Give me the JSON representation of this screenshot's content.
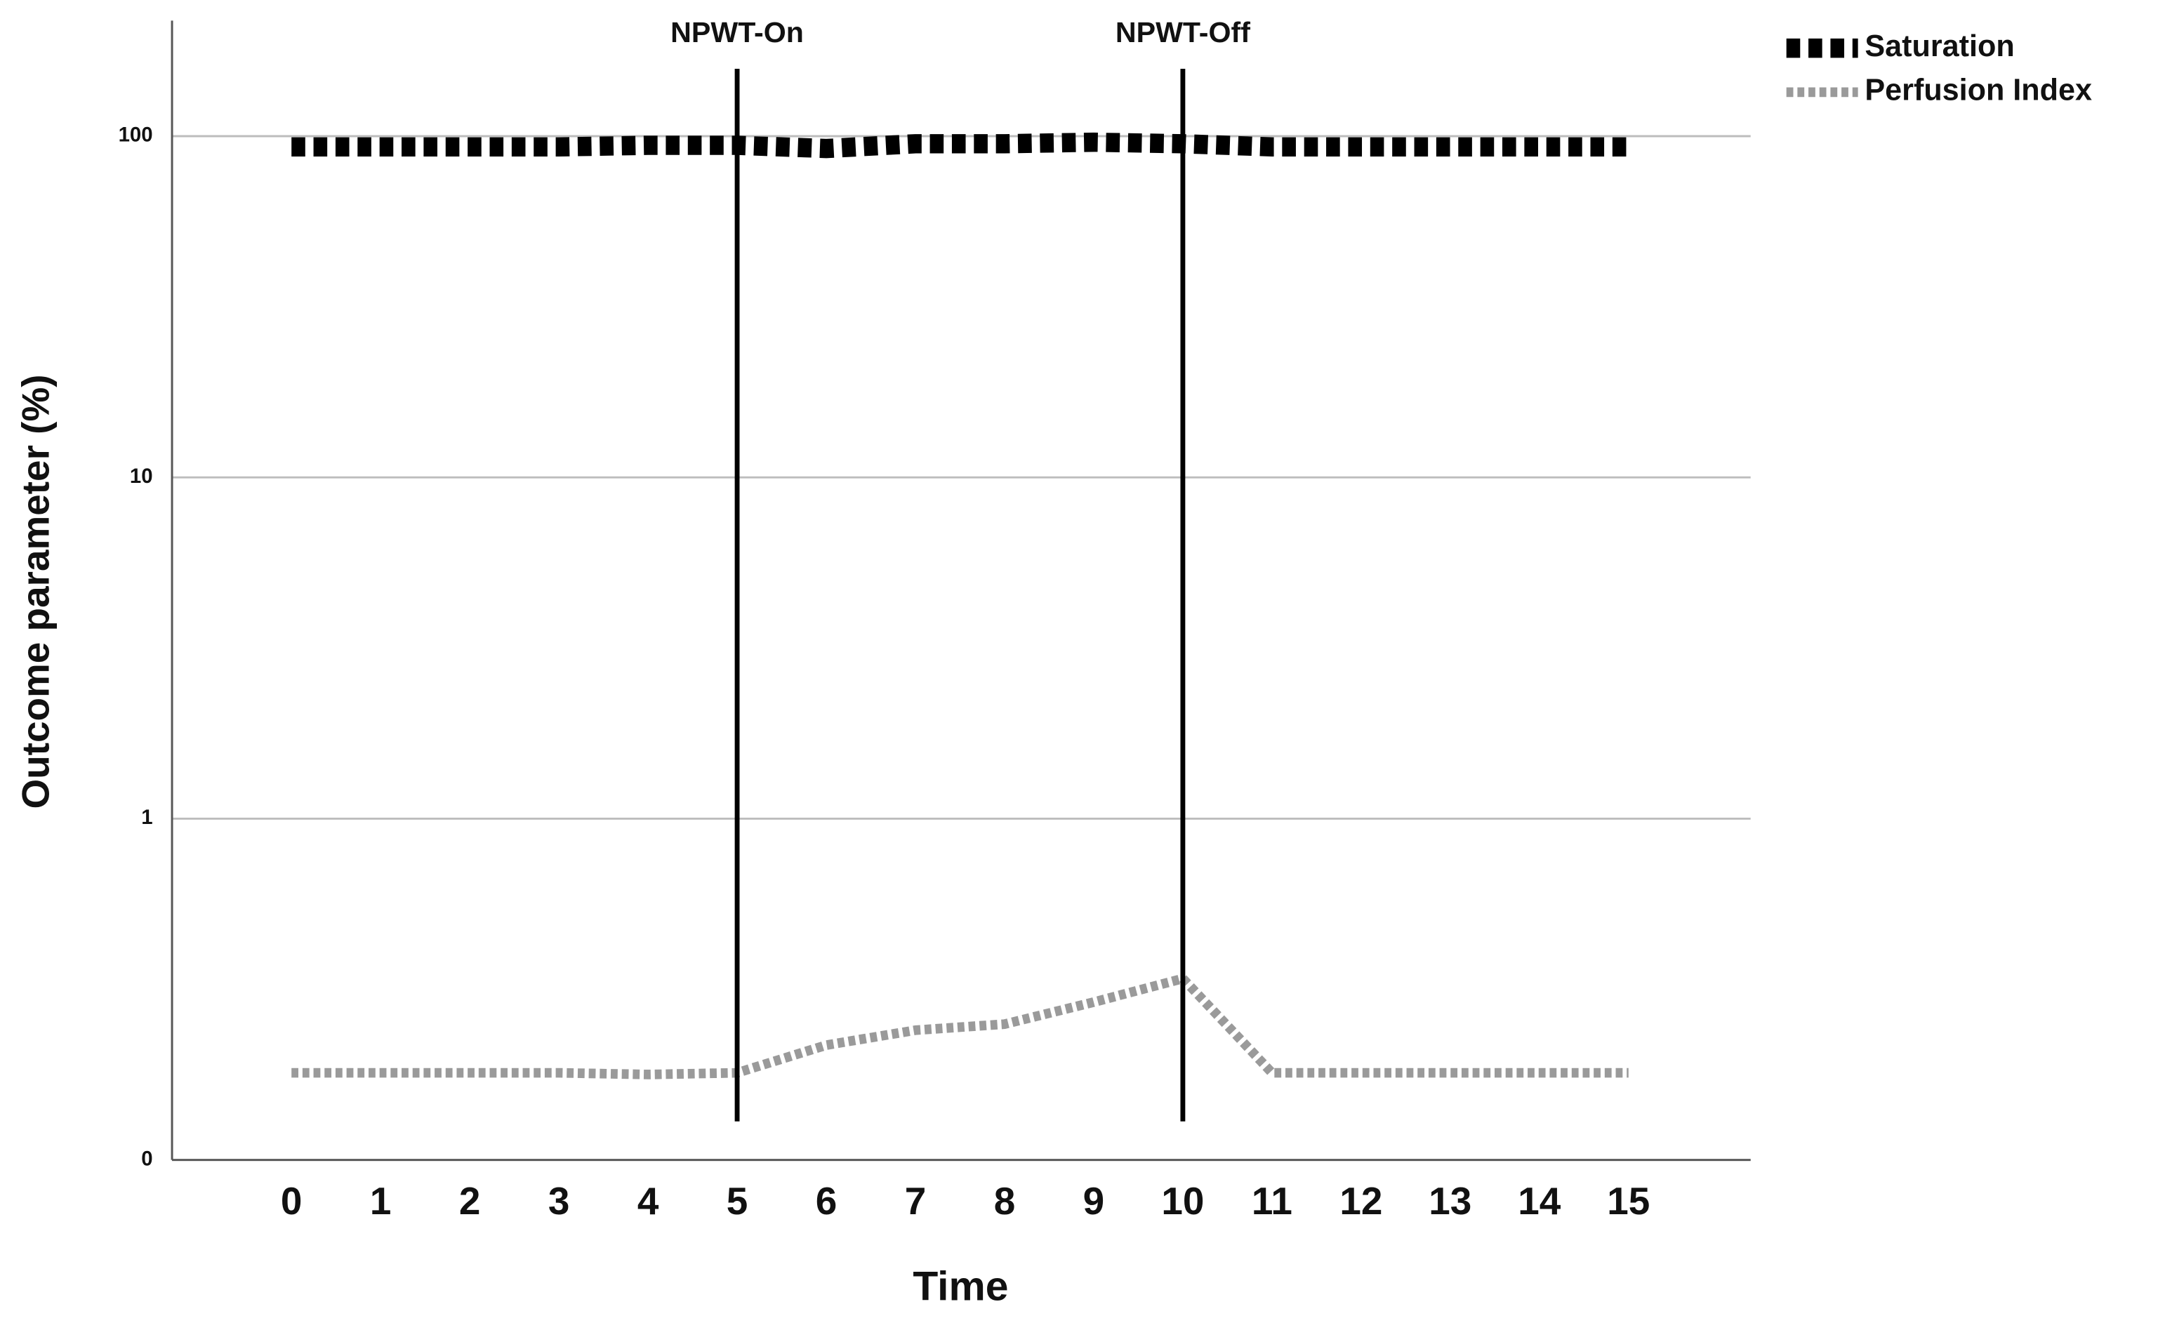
{
  "chart_data": {
    "type": "line",
    "x_label": "Time",
    "y_label": "Outcome parameter (%)",
    "x": [
      0,
      1,
      2,
      3,
      4,
      5,
      6,
      7,
      8,
      9,
      10,
      11,
      12,
      13,
      14,
      15
    ],
    "xlim": [
      -1.34,
      16.37
    ],
    "xticks": [
      0,
      1,
      2,
      3,
      4,
      5,
      6,
      7,
      8,
      9,
      10,
      11,
      12,
      13,
      14,
      15
    ],
    "y_scale": "log",
    "ylim": [
      0.1,
      218
    ],
    "yticks": [
      {
        "value": 0.1,
        "label": "0"
      },
      1,
      10,
      100
    ],
    "grid": true,
    "legend": "top-right",
    "series": [
      {
        "name": "Saturation",
        "color": "#000000",
        "values": [
          93,
          93,
          93,
          93,
          94,
          94,
          92,
          95,
          95,
          96,
          95,
          93,
          93,
          93,
          93,
          93
        ]
      },
      {
        "name": "Perfusion Index",
        "color": "#9a9a9a",
        "values": [
          0.18,
          0.18,
          0.18,
          0.18,
          0.178,
          0.18,
          0.217,
          0.24,
          0.25,
          0.29,
          0.34,
          0.18,
          0.18,
          0.18,
          0.18,
          0.18
        ]
      }
    ],
    "annotations": [
      {
        "text": "NPWT-On",
        "x": 5
      },
      {
        "text": "NPWT-Off",
        "x": 10
      }
    ]
  }
}
